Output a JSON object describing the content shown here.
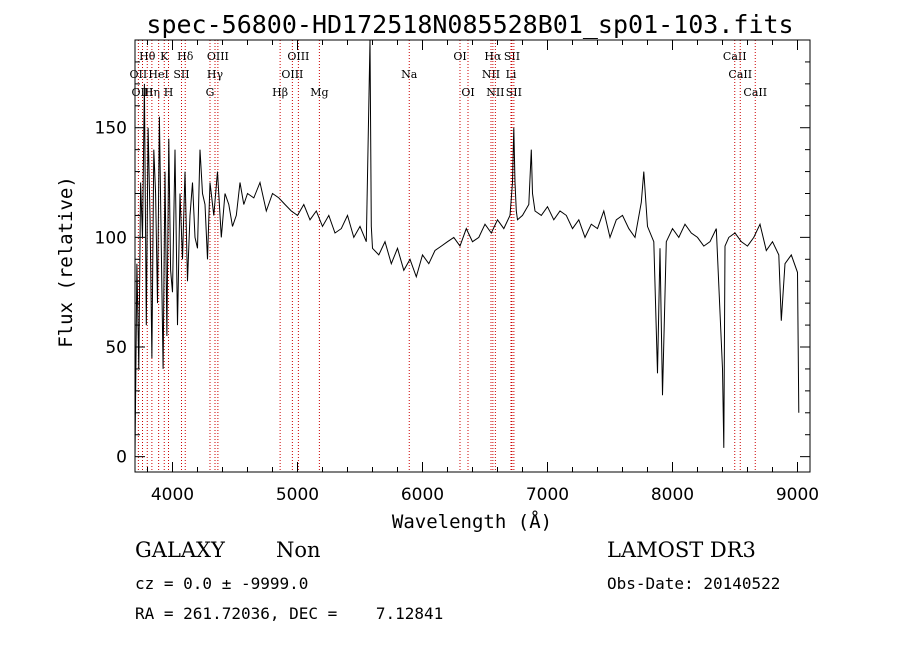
{
  "chart_data": {
    "type": "line",
    "title": "spec-56800-HD172518N085528B01_sp01-103.fits",
    "xlabel": "Wavelength (Å)",
    "ylabel": "Flux (relative)",
    "xlim": [
      3700,
      9100
    ],
    "ylim": [
      -7,
      190
    ],
    "x_ticks": [
      4000,
      5000,
      6000,
      7000,
      8000,
      9000
    ],
    "y_ticks": [
      0,
      50,
      100,
      150
    ],
    "line_color": "#000000",
    "marker_color": "#cc0000",
    "series": [
      {
        "x": [
          3700,
          3715,
          3730,
          3745,
          3760,
          3775,
          3790,
          3805,
          3820,
          3835,
          3850,
          3865,
          3880,
          3895,
          3910,
          3925,
          3940,
          3955,
          3970,
          3985,
          4000,
          4020,
          4040,
          4060,
          4080,
          4100,
          4120,
          4140,
          4160,
          4180,
          4200,
          4220,
          4240,
          4260,
          4280,
          4300,
          4330,
          4360,
          4390,
          4420,
          4450,
          4480,
          4510,
          4540,
          4570,
          4600,
          4650,
          4700,
          4750,
          4800,
          4850,
          4900,
          4950,
          5000,
          5050,
          5100,
          5150,
          5200,
          5250,
          5300,
          5350,
          5400,
          5450,
          5500,
          5550,
          5580,
          5590,
          5600,
          5650,
          5700,
          5750,
          5800,
          5850,
          5900,
          5950,
          6000,
          6050,
          6100,
          6150,
          6200,
          6250,
          6300,
          6350,
          6400,
          6450,
          6500,
          6550,
          6600,
          6650,
          6700,
          6720,
          6730,
          6740,
          6750,
          6760,
          6800,
          6850,
          6870,
          6880,
          6900,
          6950,
          7000,
          7050,
          7100,
          7150,
          7200,
          7250,
          7300,
          7350,
          7400,
          7450,
          7500,
          7550,
          7600,
          7650,
          7700,
          7750,
          7770,
          7800,
          7850,
          7880,
          7900,
          7920,
          7950,
          8000,
          8050,
          8100,
          8150,
          8200,
          8250,
          8300,
          8350,
          8400,
          8410,
          8420,
          8450,
          8500,
          8550,
          8600,
          8650,
          8700,
          8750,
          8800,
          8850,
          8870,
          8900,
          8950,
          9000,
          9010
        ],
        "y": [
          0,
          88,
          40,
          125,
          100,
          170,
          60,
          150,
          110,
          45,
          140,
          120,
          70,
          155,
          95,
          40,
          130,
          55,
          145,
          85,
          75,
          140,
          60,
          120,
          90,
          130,
          80,
          110,
          125,
          100,
          95,
          140,
          120,
          115,
          90,
          125,
          110,
          130,
          100,
          120,
          115,
          105,
          110,
          125,
          115,
          120,
          118,
          125,
          112,
          120,
          118,
          115,
          112,
          110,
          115,
          108,
          112,
          105,
          110,
          102,
          104,
          110,
          100,
          105,
          98,
          190,
          105,
          95,
          92,
          98,
          88,
          95,
          85,
          90,
          82,
          92,
          88,
          94,
          96,
          98,
          100,
          96,
          104,
          98,
          100,
          106,
          102,
          108,
          104,
          110,
          125,
          150,
          125,
          112,
          108,
          110,
          115,
          140,
          120,
          112,
          110,
          114,
          108,
          112,
          110,
          104,
          108,
          100,
          106,
          104,
          112,
          100,
          108,
          110,
          104,
          100,
          116,
          130,
          105,
          98,
          38,
          95,
          28,
          98,
          104,
          100,
          106,
          102,
          100,
          96,
          98,
          104,
          40,
          4,
          96,
          100,
          102,
          98,
          96,
          100,
          106,
          94,
          98,
          92,
          62,
          88,
          92,
          84,
          20
        ]
      }
    ],
    "spectral_lines": [
      {
        "label": "OII",
        "wavelength": 3727,
        "row": 2
      },
      {
        "label": "OIII",
        "wavelength": 3760,
        "row": 3
      },
      {
        "label": "Hθ",
        "wavelength": 3798,
        "row": 1
      },
      {
        "label": "Hη",
        "wavelength": 3835,
        "row": 3
      },
      {
        "label": "HeI",
        "wavelength": 3889,
        "row": 2
      },
      {
        "label": "K",
        "wavelength": 3934,
        "row": 1
      },
      {
        "label": "H",
        "wavelength": 3968,
        "row": 3
      },
      {
        "label": "SII",
        "wavelength": 4072,
        "row": 2
      },
      {
        "label": "Hδ",
        "wavelength": 4102,
        "row": 1
      },
      {
        "label": "G",
        "wavelength": 4300,
        "row": 3
      },
      {
        "label": "Hγ",
        "wavelength": 4340,
        "row": 2
      },
      {
        "label": "OIII",
        "wavelength": 4363,
        "row": 1
      },
      {
        "label": "Hβ",
        "wavelength": 4861,
        "row": 3
      },
      {
        "label": "OIII",
        "wavelength": 4959,
        "row": 2
      },
      {
        "label": "OIII",
        "wavelength": 5007,
        "row": 1
      },
      {
        "label": "Mg",
        "wavelength": 5175,
        "row": 3
      },
      {
        "label": "Na",
        "wavelength": 5894,
        "row": 2
      },
      {
        "label": "OI",
        "wavelength": 6300,
        "row": 1
      },
      {
        "label": "OI",
        "wavelength": 6364,
        "row": 3
      },
      {
        "label": "NII",
        "wavelength": 6548,
        "row": 2
      },
      {
        "label": "Hα",
        "wavelength": 6563,
        "row": 1
      },
      {
        "label": "NII",
        "wavelength": 6583,
        "row": 3
      },
      {
        "label": "SII",
        "wavelength": 6716,
        "row": 1
      },
      {
        "label": "SII",
        "wavelength": 6731,
        "row": 3
      },
      {
        "label": "Li",
        "wavelength": 6708,
        "row": 2
      },
      {
        "label": "CaII",
        "wavelength": 8498,
        "row": 1
      },
      {
        "label": "CaII",
        "wavelength": 8542,
        "row": 2
      },
      {
        "label": "CaII",
        "wavelength": 8662,
        "row": 3
      }
    ]
  },
  "info": {
    "object_class": "GALAXY",
    "subclass": "Non",
    "survey": "LAMOST DR3",
    "redshift_line": "cz = 0.0 ± -9999.0",
    "obs_date_line": "Obs-Date: 20140522",
    "coords_line": "RA = 261.72036, DEC =    7.12841"
  }
}
